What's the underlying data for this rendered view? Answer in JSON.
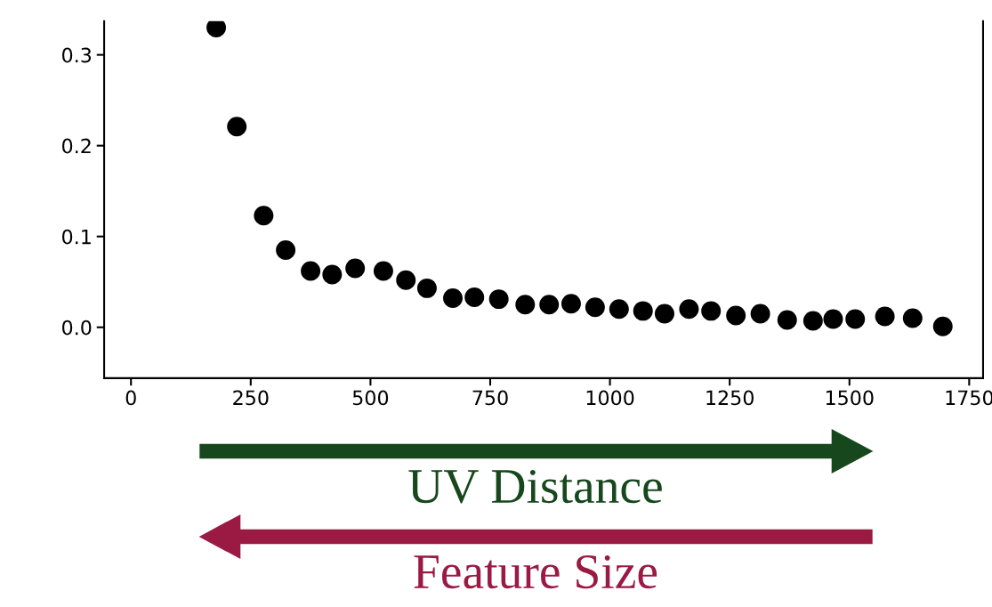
{
  "chart_data": {
    "type": "scatter",
    "x": [
      178,
      221,
      277,
      323,
      375,
      420,
      468,
      527,
      574,
      618,
      672,
      717,
      768,
      823,
      873,
      919,
      969,
      1019,
      1069,
      1114,
      1165,
      1211,
      1263,
      1314,
      1370,
      1424,
      1466,
      1512,
      1574,
      1632,
      1695
    ],
    "values": [
      0.33,
      0.221,
      0.123,
      0.085,
      0.062,
      0.058,
      0.065,
      0.062,
      0.052,
      0.043,
      0.032,
      0.033,
      0.031,
      0.025,
      0.025,
      0.026,
      0.022,
      0.02,
      0.018,
      0.015,
      0.02,
      0.018,
      0.013,
      0.015,
      0.008,
      0.007,
      0.009,
      0.009,
      0.012,
      0.01,
      0.001
    ],
    "color": "#000000",
    "marker": "circle",
    "xlim": [
      -56,
      1779
    ],
    "ylim": [
      -0.056,
      0.337
    ],
    "xticks": [
      0,
      250,
      500,
      750,
      1000,
      1250,
      1500,
      1750
    ],
    "yticks": [
      {
        "value": 0,
        "label": "0.0"
      },
      0.1,
      0.2,
      0.3
    ],
    "grid": false,
    "annotations": [
      "UV Distance",
      "Feature Size"
    ]
  }
}
